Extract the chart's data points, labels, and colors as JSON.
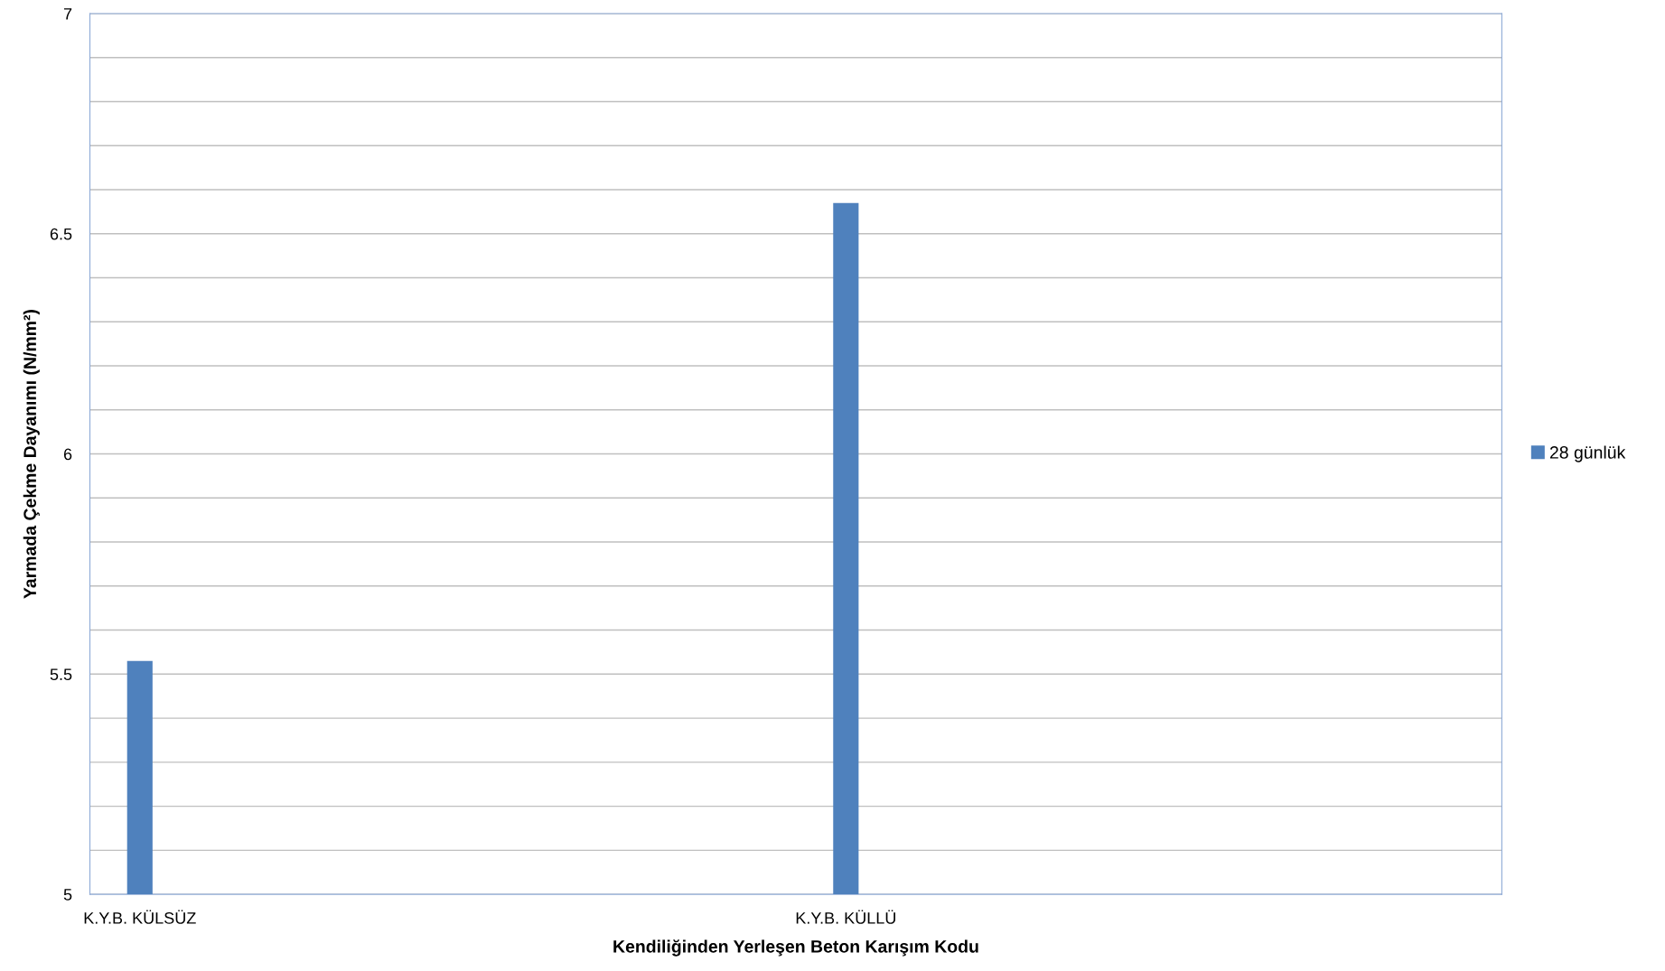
{
  "chart_data": {
    "type": "bar",
    "xlabel": "Kendiliğinden Yerleşen Beton Karışım Kodu",
    "ylabel": "Yarmada Çekme Dayanımı (N/mm²)",
    "categories": [
      "K.Y.B. KÜLSÜZ",
      "K.Y.B. KÜLLÜ"
    ],
    "series": [
      {
        "name": "28 günlük",
        "color": "#4f81bd",
        "values": [
          5.53,
          6.57
        ]
      }
    ],
    "ylim": [
      5,
      7
    ],
    "yticks": [
      5,
      {
        "value": 5.1,
        "label": null
      },
      {
        "value": 5.2,
        "label": null
      },
      {
        "value": 5.3,
        "label": null
      },
      {
        "value": 5.4,
        "label": null
      },
      5.5,
      {
        "value": 5.6,
        "label": null
      },
      {
        "value": 5.7,
        "label": null
      },
      {
        "value": 5.8,
        "label": null
      },
      {
        "value": 5.9,
        "label": null
      },
      6,
      {
        "value": 6.1,
        "label": null
      },
      {
        "value": 6.2,
        "label": null
      },
      {
        "value": 6.3,
        "label": null
      },
      {
        "value": 6.4,
        "label": null
      },
      6.5,
      {
        "value": 6.6,
        "label": null
      },
      {
        "value": 6.7,
        "label": null
      },
      {
        "value": 6.8,
        "label": null
      },
      {
        "value": 6.9,
        "label": null
      },
      7
    ],
    "grid": "y",
    "legend": "right"
  }
}
